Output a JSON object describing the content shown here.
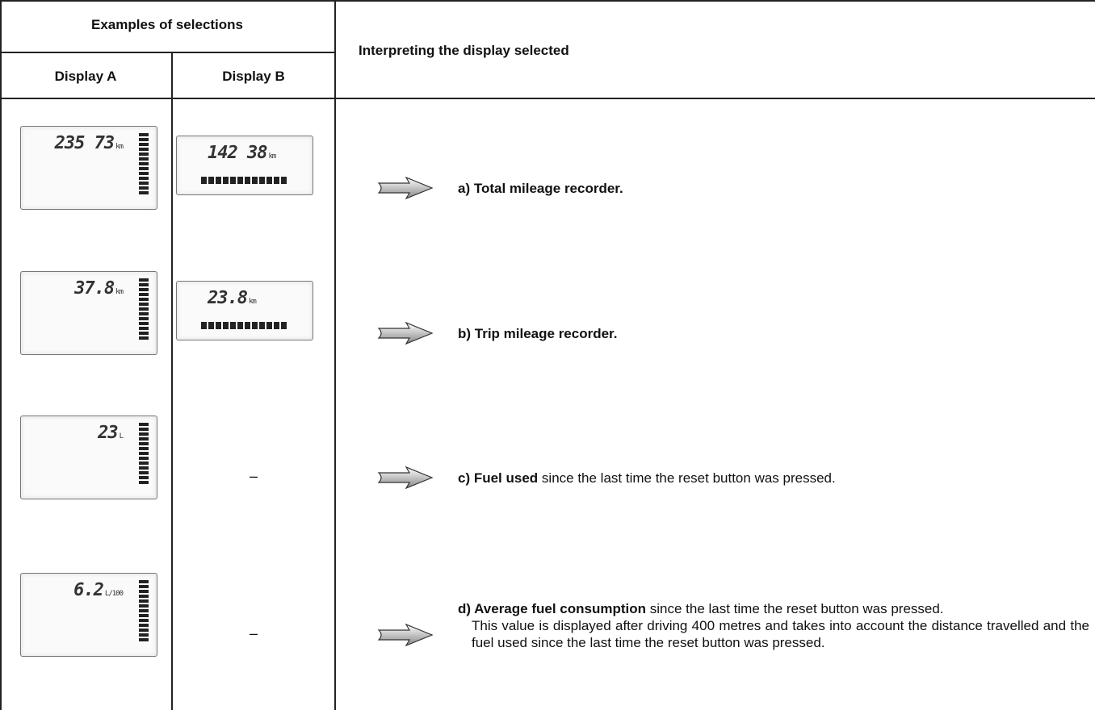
{
  "header": {
    "examples": "Examples of selections",
    "display_a": "Display A",
    "display_b": "Display B",
    "interpreting": "Interpreting the display selected"
  },
  "rows": [
    {
      "display_a": {
        "reading": "235 73",
        "unit": "km"
      },
      "display_b": {
        "reading": "142 38",
        "unit": "km"
      },
      "label": "a) Total mileage recorder."
    },
    {
      "display_a": {
        "reading": "37.8",
        "unit": "km"
      },
      "display_b": {
        "reading": "23.8",
        "unit": "km"
      },
      "label": "b) Trip mileage recorder."
    },
    {
      "display_a": {
        "reading": "23",
        "unit": "L"
      },
      "display_b": "–",
      "label": "c) Fuel used",
      "text": "since the last time the reset button was pressed."
    },
    {
      "display_a": {
        "reading": "6.2",
        "unit": "L/100"
      },
      "display_b": "–",
      "label": "d) Average fuel consumption",
      "text": "since the last time the reset button was pressed.",
      "note": "This value is displayed after driving 400 metres and takes into account the distance travelled and the fuel used since the last time the reset button was pressed."
    }
  ]
}
